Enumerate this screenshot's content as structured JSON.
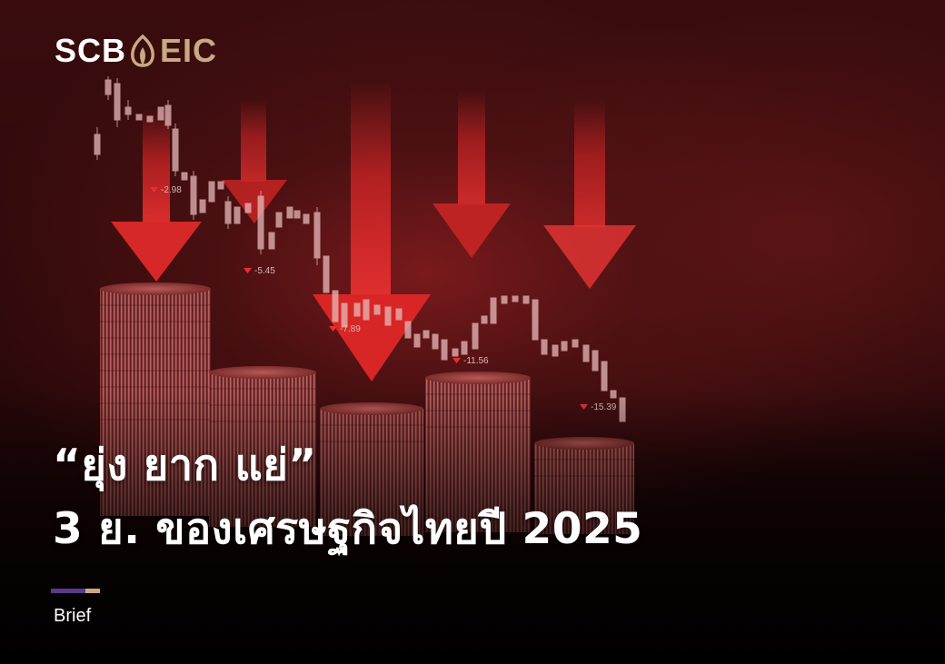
{
  "brand": {
    "name_left": "SCB",
    "name_right": "EIC",
    "icon": "leaf-icon",
    "colors": {
      "white": "#ffffff",
      "gold": "#c8a983"
    }
  },
  "headline": {
    "line1": "“ยุ่ง ยาก แย่”",
    "line2": "3 ย. ของเศรษฐกิจไทยปี 2025"
  },
  "tag": "Brief",
  "accent_colors": [
    "#5b3a8c",
    "#c8a983"
  ],
  "background": {
    "description_icons": [
      "down-arrow-icon",
      "coin-stack-icon",
      "candlestick-chart-icon"
    ],
    "chart_labels": [
      "-2.98",
      "-5.45",
      "-7.89",
      "-11.56",
      "-15.39"
    ],
    "theme_color": "#e02a2a"
  }
}
